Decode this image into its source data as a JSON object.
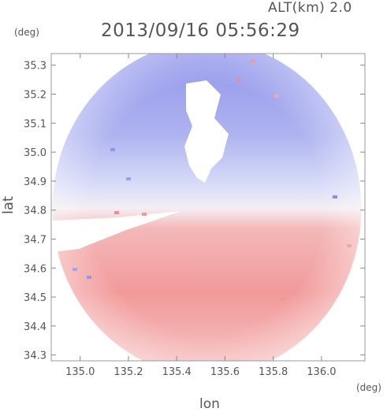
{
  "chart_data": {
    "type": "heatmap",
    "title": "2013/09/16 05:56:29",
    "subtitle": "ALT(km) 2.0",
    "xlabel": "lon",
    "ylabel": "lat",
    "x_unit": "(deg)",
    "y_unit": "(deg)",
    "xlim": [
      134.88,
      136.18
    ],
    "ylim": [
      34.28,
      35.34
    ],
    "x_ticks": [
      135.0,
      135.2,
      135.4,
      135.6,
      135.8,
      136.0
    ],
    "x_tick_labels": [
      "135.0",
      "135.2",
      "135.4",
      "135.6",
      "135.8",
      "136.0"
    ],
    "y_ticks": [
      34.3,
      34.4,
      34.5,
      34.6,
      34.7,
      34.8,
      34.9,
      35.0,
      35.1,
      35.2,
      35.3
    ],
    "y_tick_labels": [
      "34.3",
      "34.4",
      "34.5",
      "34.6",
      "34.7",
      "34.8",
      "34.9",
      "35.0",
      "35.1",
      "35.2",
      "35.3"
    ],
    "radar_center": [
      135.525,
      34.805
    ],
    "radar_radius_deg": 0.64,
    "colors": {
      "receding": "#ee7777",
      "approaching": "#7f86ea",
      "frame": "#999999"
    },
    "grid": false,
    "legend": "none"
  }
}
